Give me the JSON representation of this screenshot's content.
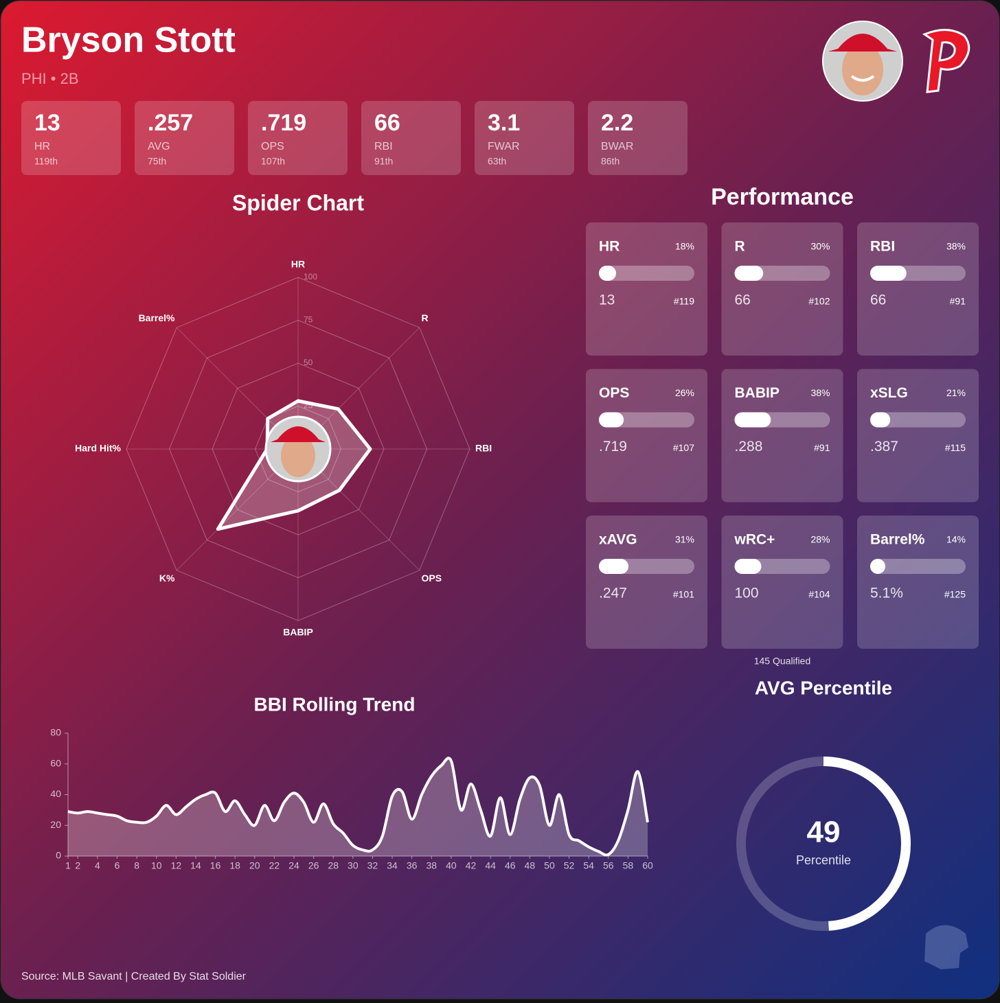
{
  "header": {
    "name": "Bryson Stott",
    "subtitle": "PHI • 2B"
  },
  "stats": [
    {
      "value": "13",
      "label": "HR",
      "rank": "119th"
    },
    {
      "value": ".257",
      "label": "AVG",
      "rank": "75th"
    },
    {
      "value": ".719",
      "label": "OPS",
      "rank": "107th"
    },
    {
      "value": "66",
      "label": "RBI",
      "rank": "91th"
    },
    {
      "value": "3.1",
      "label": "FWAR",
      "rank": "63th"
    },
    {
      "value": "2.2",
      "label": "BWAR",
      "rank": "86th"
    }
  ],
  "performance": {
    "title": "Performance",
    "footnote": "145 Qualified",
    "cards": [
      {
        "label": "HR",
        "percent": 18,
        "percent_label": "18%",
        "value": "13",
        "rank": "#119"
      },
      {
        "label": "R",
        "percent": 30,
        "percent_label": "30%",
        "value": "66",
        "rank": "#102"
      },
      {
        "label": "RBI",
        "percent": 38,
        "percent_label": "38%",
        "value": "66",
        "rank": "#91"
      },
      {
        "label": "OPS",
        "percent": 26,
        "percent_label": "26%",
        "value": ".719",
        "rank": "#107"
      },
      {
        "label": "BABIP",
        "percent": 38,
        "percent_label": "38%",
        "value": ".288",
        "rank": "#91"
      },
      {
        "label": "xSLG",
        "percent": 21,
        "percent_label": "21%",
        "value": ".387",
        "rank": "#115"
      },
      {
        "label": "xAVG",
        "percent": 31,
        "percent_label": "31%",
        "value": ".247",
        "rank": "#101"
      },
      {
        "label": "wRC+",
        "percent": 28,
        "percent_label": "28%",
        "value": "100",
        "rank": "#104"
      },
      {
        "label": "Barrel%",
        "percent": 14,
        "percent_label": "14%",
        "value": "5.1%",
        "rank": "#125"
      }
    ]
  },
  "chart_data": [
    {
      "type": "radar",
      "title": "Spider Chart",
      "categories": [
        "HR",
        "R",
        "RBI",
        "OPS",
        "BABIP",
        "K%",
        "Hard Hit%",
        "Barrel%"
      ],
      "values": [
        28,
        33,
        42,
        34,
        36,
        66,
        18,
        25
      ],
      "rlim": [
        0,
        100
      ],
      "rticks": [
        25,
        50,
        75,
        100
      ]
    },
    {
      "type": "line",
      "title": "BBI Rolling Trend",
      "color": "#ffffff",
      "x": [
        1,
        2,
        3,
        4,
        5,
        6,
        7,
        8,
        9,
        10,
        11,
        12,
        13,
        14,
        15,
        16,
        17,
        18,
        19,
        20,
        21,
        22,
        23,
        24,
        25,
        26,
        27,
        28,
        29,
        30,
        31,
        32,
        33,
        34,
        35,
        36,
        37,
        38,
        39,
        40,
        41,
        42,
        43,
        44,
        45,
        46,
        47,
        48,
        49,
        50,
        51,
        52,
        53,
        54,
        55,
        56,
        57,
        58,
        59,
        60
      ],
      "values": [
        29,
        28,
        29,
        28,
        27,
        26,
        23,
        22,
        22,
        26,
        33,
        27,
        32,
        37,
        40,
        41,
        29,
        36,
        27,
        20,
        33,
        23,
        35,
        41,
        35,
        22,
        34,
        21,
        15,
        7,
        4,
        4,
        13,
        39,
        42,
        24,
        40,
        52,
        59,
        62,
        30,
        47,
        30,
        13,
        38,
        14,
        37,
        51,
        46,
        20,
        40,
        14,
        10,
        6,
        3,
        1,
        10,
        30,
        55,
        22
      ],
      "xlim": [
        1,
        60
      ],
      "xticks": [
        1,
        2,
        4,
        6,
        8,
        10,
        12,
        14,
        16,
        18,
        20,
        22,
        24,
        26,
        28,
        30,
        32,
        34,
        36,
        38,
        40,
        42,
        44,
        46,
        48,
        50,
        52,
        54,
        56,
        58,
        60
      ],
      "ylim": [
        0,
        80
      ],
      "yticks": [
        0,
        20,
        40,
        60,
        80
      ]
    },
    {
      "type": "gauge",
      "title": "AVG Percentile",
      "value": 49,
      "label": "Percentile",
      "lim": [
        0,
        100
      ]
    }
  ],
  "footer": "Source: MLB Savant | Created By Stat Soldier"
}
